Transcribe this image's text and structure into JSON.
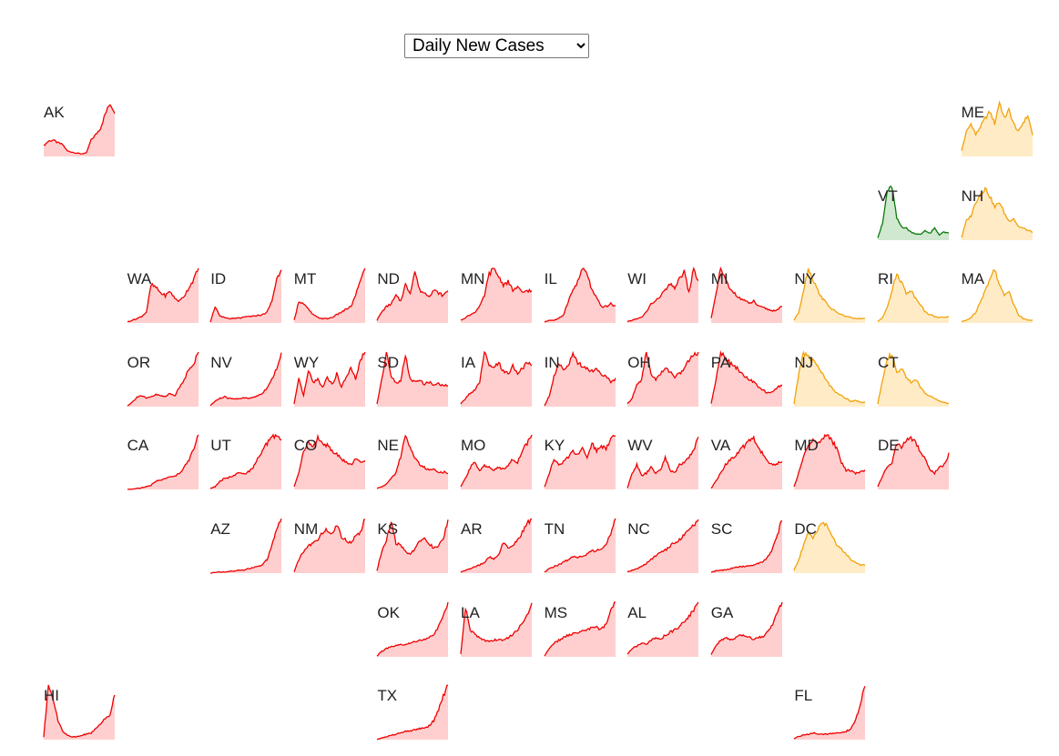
{
  "controls": {
    "metric_options": [
      "Daily New Cases"
    ],
    "metric_selected": "Daily New Cases"
  },
  "colors": {
    "red": {
      "line": "#ee0000",
      "fill": "#ffcfcf"
    },
    "orange": {
      "line": "#f2a20a",
      "fill": "#ffecc6"
    },
    "green": {
      "line": "#0b7a0b",
      "fill": "#cfe8cf"
    }
  },
  "chart_data": {
    "type": "area",
    "note_units": "relative daily new cases per state (0-1 of state max)",
    "states": [
      {
        "abbr": "AK",
        "row": 0,
        "col": 0,
        "color": "red",
        "values": [
          0.2,
          0.28,
          0.3,
          0.25,
          0.22,
          0.1,
          0.08,
          0.06,
          0.05,
          0.06,
          0.3,
          0.4,
          0.52,
          0.78,
          0.97,
          0.82
        ]
      },
      {
        "abbr": "ME",
        "row": 0,
        "col": 11,
        "color": "orange",
        "values": [
          0.1,
          0.45,
          0.6,
          0.4,
          0.55,
          0.7,
          0.82,
          0.6,
          1.0,
          0.7,
          0.85,
          0.6,
          0.45,
          0.62,
          0.75,
          0.4
        ]
      },
      {
        "abbr": "VT",
        "row": 1,
        "col": 10,
        "color": "green",
        "values": [
          0.05,
          0.3,
          0.9,
          0.98,
          0.4,
          0.25,
          0.22,
          0.15,
          0.12,
          0.1,
          0.18,
          0.12,
          0.22,
          0.1,
          0.15,
          0.12
        ]
      },
      {
        "abbr": "NH",
        "row": 1,
        "col": 11,
        "color": "orange",
        "values": [
          0.05,
          0.35,
          0.45,
          0.7,
          0.85,
          0.95,
          0.8,
          0.6,
          0.7,
          0.5,
          0.35,
          0.4,
          0.25,
          0.22,
          0.18,
          0.15
        ]
      },
      {
        "abbr": "WA",
        "row": 2,
        "col": 1,
        "color": "red",
        "values": [
          0.02,
          0.05,
          0.08,
          0.12,
          0.2,
          0.7,
          0.65,
          0.55,
          0.5,
          0.58,
          0.45,
          0.4,
          0.5,
          0.65,
          0.8,
          1.0
        ]
      },
      {
        "abbr": "ID",
        "row": 2,
        "col": 2,
        "color": "red",
        "values": [
          0.02,
          0.3,
          0.12,
          0.1,
          0.08,
          0.08,
          0.09,
          0.1,
          0.12,
          0.12,
          0.14,
          0.15,
          0.2,
          0.4,
          0.8,
          1.0
        ]
      },
      {
        "abbr": "MT",
        "row": 2,
        "col": 3,
        "color": "red",
        "values": [
          0.05,
          0.4,
          0.35,
          0.25,
          0.15,
          0.1,
          0.08,
          0.08,
          0.1,
          0.15,
          0.2,
          0.25,
          0.3,
          0.5,
          0.8,
          1.0
        ]
      },
      {
        "abbr": "ND",
        "row": 2,
        "col": 4,
        "color": "red",
        "values": [
          0.05,
          0.2,
          0.3,
          0.35,
          0.5,
          0.4,
          0.7,
          0.55,
          0.95,
          0.6,
          0.55,
          0.5,
          0.6,
          0.55,
          0.5,
          0.6
        ]
      },
      {
        "abbr": "MN",
        "row": 2,
        "col": 5,
        "color": "red",
        "values": [
          0.05,
          0.1,
          0.15,
          0.2,
          0.3,
          0.5,
          0.9,
          1.0,
          0.85,
          0.7,
          0.75,
          0.6,
          0.65,
          0.55,
          0.6,
          0.58
        ]
      },
      {
        "abbr": "IL",
        "row": 2,
        "col": 6,
        "color": "red",
        "values": [
          0.02,
          0.05,
          0.05,
          0.08,
          0.15,
          0.4,
          0.6,
          0.75,
          1.0,
          0.9,
          0.6,
          0.45,
          0.3,
          0.3,
          0.35,
          0.3
        ]
      },
      {
        "abbr": "WI",
        "row": 2,
        "col": 7,
        "color": "red",
        "values": [
          0.02,
          0.05,
          0.08,
          0.1,
          0.2,
          0.35,
          0.4,
          0.5,
          0.6,
          0.7,
          0.65,
          0.8,
          0.95,
          0.55,
          1.0,
          0.75
        ]
      },
      {
        "abbr": "MI",
        "row": 2,
        "col": 8,
        "color": "red",
        "values": [
          0.1,
          0.5,
          1.0,
          0.8,
          0.6,
          0.55,
          0.45,
          0.42,
          0.35,
          0.4,
          0.3,
          0.28,
          0.25,
          0.22,
          0.25,
          0.3
        ]
      },
      {
        "abbr": "NY",
        "row": 2,
        "col": 9,
        "color": "orange",
        "values": [
          0.05,
          0.2,
          0.6,
          1.0,
          0.8,
          0.6,
          0.45,
          0.35,
          0.25,
          0.2,
          0.15,
          0.12,
          0.1,
          0.08,
          0.08,
          0.08
        ]
      },
      {
        "abbr": "RI",
        "row": 2,
        "col": 10,
        "color": "orange",
        "values": [
          0.02,
          0.1,
          0.3,
          0.6,
          0.9,
          0.75,
          0.55,
          0.6,
          0.45,
          0.35,
          0.2,
          0.15,
          0.12,
          0.1,
          0.1,
          0.12
        ]
      },
      {
        "abbr": "MA",
        "row": 2,
        "col": 11,
        "color": "orange",
        "values": [
          0.02,
          0.05,
          0.1,
          0.2,
          0.4,
          0.6,
          0.8,
          1.0,
          0.7,
          0.5,
          0.6,
          0.35,
          0.15,
          0.08,
          0.06,
          0.05
        ]
      },
      {
        "abbr": "OR",
        "row": 3,
        "col": 1,
        "color": "red",
        "values": [
          0.02,
          0.08,
          0.18,
          0.2,
          0.15,
          0.18,
          0.22,
          0.2,
          0.18,
          0.25,
          0.2,
          0.35,
          0.5,
          0.7,
          0.8,
          1.0
        ]
      },
      {
        "abbr": "NV",
        "row": 3,
        "col": 2,
        "color": "red",
        "values": [
          0.02,
          0.1,
          0.15,
          0.18,
          0.15,
          0.14,
          0.15,
          0.16,
          0.15,
          0.17,
          0.2,
          0.25,
          0.35,
          0.5,
          0.7,
          1.0
        ]
      },
      {
        "abbr": "WY",
        "row": 3,
        "col": 3,
        "color": "red",
        "values": [
          0.05,
          0.5,
          0.2,
          0.65,
          0.45,
          0.5,
          0.35,
          0.55,
          0.4,
          0.6,
          0.35,
          0.55,
          0.7,
          0.5,
          0.85,
          1.0
        ]
      },
      {
        "abbr": "SD",
        "row": 3,
        "col": 4,
        "color": "red",
        "values": [
          0.05,
          0.5,
          1.0,
          0.55,
          0.45,
          0.45,
          0.95,
          0.5,
          0.45,
          0.48,
          0.42,
          0.45,
          0.4,
          0.42,
          0.38,
          0.4
        ]
      },
      {
        "abbr": "IA",
        "row": 3,
        "col": 5,
        "color": "red",
        "values": [
          0.05,
          0.15,
          0.25,
          0.3,
          0.45,
          1.0,
          0.75,
          0.7,
          0.8,
          0.65,
          0.6,
          0.75,
          0.6,
          0.7,
          0.8,
          0.75
        ]
      },
      {
        "abbr": "IN",
        "row": 3,
        "col": 6,
        "color": "red",
        "values": [
          0.02,
          0.2,
          0.55,
          0.8,
          0.7,
          0.75,
          0.95,
          0.8,
          0.75,
          0.7,
          0.65,
          0.7,
          0.6,
          0.55,
          0.45,
          0.5
        ]
      },
      {
        "abbr": "OH",
        "row": 3,
        "col": 7,
        "color": "red",
        "values": [
          0.05,
          0.15,
          0.4,
          0.5,
          1.0,
          0.6,
          0.5,
          0.6,
          0.7,
          0.65,
          0.55,
          0.6,
          0.7,
          0.85,
          0.95,
          1.0
        ]
      },
      {
        "abbr": "PA",
        "row": 3,
        "col": 8,
        "color": "red",
        "values": [
          0.05,
          0.5,
          1.0,
          0.9,
          0.8,
          0.75,
          0.65,
          0.55,
          0.5,
          0.45,
          0.35,
          0.3,
          0.25,
          0.28,
          0.35,
          0.4
        ]
      },
      {
        "abbr": "NJ",
        "row": 3,
        "col": 9,
        "color": "orange",
        "values": [
          0.05,
          0.6,
          1.0,
          0.9,
          0.85,
          0.75,
          0.6,
          0.45,
          0.35,
          0.25,
          0.2,
          0.15,
          0.1,
          0.12,
          0.08,
          0.08
        ]
      },
      {
        "abbr": "CT",
        "row": 3,
        "col": 10,
        "color": "orange",
        "values": [
          0.05,
          0.5,
          0.9,
          0.95,
          0.6,
          0.7,
          0.55,
          0.45,
          0.5,
          0.35,
          0.25,
          0.2,
          0.15,
          0.1,
          0.08,
          0.06
        ]
      },
      {
        "abbr": "CA",
        "row": 4,
        "col": 1,
        "color": "red",
        "values": [
          0.0,
          0.01,
          0.02,
          0.03,
          0.05,
          0.08,
          0.15,
          0.18,
          0.2,
          0.22,
          0.25,
          0.3,
          0.4,
          0.55,
          0.75,
          1.0
        ]
      },
      {
        "abbr": "UT",
        "row": 4,
        "col": 2,
        "color": "red",
        "values": [
          0.02,
          0.05,
          0.15,
          0.2,
          0.22,
          0.25,
          0.3,
          0.28,
          0.32,
          0.4,
          0.55,
          0.7,
          0.85,
          0.95,
          1.0,
          0.9
        ]
      },
      {
        "abbr": "CO",
        "row": 4,
        "col": 3,
        "color": "red",
        "values": [
          0.05,
          0.3,
          0.7,
          0.9,
          0.75,
          0.95,
          0.85,
          0.8,
          0.7,
          0.65,
          0.55,
          0.5,
          0.45,
          0.55,
          0.5,
          0.55
        ]
      },
      {
        "abbr": "NE",
        "row": 4,
        "col": 4,
        "color": "red",
        "values": [
          0.02,
          0.05,
          0.1,
          0.2,
          0.3,
          0.6,
          1.0,
          0.75,
          0.6,
          0.45,
          0.4,
          0.35,
          0.4,
          0.3,
          0.32,
          0.3
        ]
      },
      {
        "abbr": "MO",
        "row": 4,
        "col": 5,
        "color": "red",
        "values": [
          0.05,
          0.2,
          0.4,
          0.5,
          0.35,
          0.45,
          0.4,
          0.35,
          0.4,
          0.38,
          0.45,
          0.55,
          0.5,
          0.7,
          0.85,
          1.0
        ]
      },
      {
        "abbr": "KY",
        "row": 4,
        "col": 6,
        "color": "red",
        "values": [
          0.05,
          0.3,
          0.55,
          0.45,
          0.5,
          0.6,
          0.7,
          0.65,
          0.75,
          0.6,
          0.85,
          0.7,
          0.8,
          0.75,
          0.95,
          1.0
        ]
      },
      {
        "abbr": "WV",
        "row": 4,
        "col": 7,
        "color": "red",
        "values": [
          0.02,
          0.3,
          0.45,
          0.25,
          0.3,
          0.4,
          0.3,
          0.35,
          0.6,
          0.35,
          0.3,
          0.45,
          0.5,
          0.6,
          0.7,
          1.0
        ]
      },
      {
        "abbr": "VA",
        "row": 4,
        "col": 8,
        "color": "red",
        "values": [
          0.02,
          0.15,
          0.3,
          0.45,
          0.55,
          0.6,
          0.7,
          0.8,
          0.9,
          0.95,
          0.75,
          0.65,
          0.5,
          0.45,
          0.48,
          0.5
        ]
      },
      {
        "abbr": "MD",
        "row": 4,
        "col": 9,
        "color": "red",
        "values": [
          0.05,
          0.3,
          0.6,
          0.8,
          0.9,
          0.85,
          0.95,
          1.0,
          0.9,
          0.75,
          0.5,
          0.35,
          0.35,
          0.3,
          0.32,
          0.35
        ]
      },
      {
        "abbr": "DE",
        "row": 4,
        "col": 10,
        "color": "red",
        "values": [
          0.05,
          0.25,
          0.4,
          0.5,
          0.85,
          0.75,
          0.9,
          0.95,
          0.85,
          0.7,
          0.55,
          0.35,
          0.3,
          0.4,
          0.45,
          0.65
        ]
      },
      {
        "abbr": "AZ",
        "row": 5,
        "col": 2,
        "color": "red",
        "values": [
          0.0,
          0.01,
          0.02,
          0.02,
          0.03,
          0.04,
          0.05,
          0.06,
          0.08,
          0.1,
          0.12,
          0.15,
          0.25,
          0.5,
          0.8,
          1.0
        ]
      },
      {
        "abbr": "NM",
        "row": 5,
        "col": 3,
        "color": "red",
        "values": [
          0.02,
          0.25,
          0.4,
          0.5,
          0.55,
          0.6,
          0.75,
          0.8,
          0.7,
          0.9,
          0.65,
          0.6,
          0.55,
          0.7,
          0.75,
          1.0
        ]
      },
      {
        "abbr": "KS",
        "row": 5,
        "col": 4,
        "color": "red",
        "values": [
          0.05,
          0.4,
          0.6,
          0.95,
          0.55,
          0.5,
          0.4,
          0.35,
          0.45,
          0.6,
          0.65,
          0.55,
          0.45,
          0.5,
          0.65,
          0.95
        ]
      },
      {
        "abbr": "AR",
        "row": 5,
        "col": 5,
        "color": "red",
        "values": [
          0.02,
          0.05,
          0.08,
          0.12,
          0.15,
          0.2,
          0.3,
          0.25,
          0.35,
          0.55,
          0.45,
          0.5,
          0.6,
          0.75,
          0.9,
          1.0
        ]
      },
      {
        "abbr": "TN",
        "row": 5,
        "col": 6,
        "color": "red",
        "values": [
          0.02,
          0.08,
          0.12,
          0.15,
          0.2,
          0.25,
          0.3,
          0.28,
          0.32,
          0.35,
          0.4,
          0.42,
          0.45,
          0.55,
          0.7,
          1.0
        ]
      },
      {
        "abbr": "NC",
        "row": 5,
        "col": 7,
        "color": "red",
        "values": [
          0.02,
          0.05,
          0.08,
          0.12,
          0.18,
          0.25,
          0.32,
          0.38,
          0.42,
          0.5,
          0.55,
          0.62,
          0.7,
          0.78,
          0.88,
          1.0
        ]
      },
      {
        "abbr": "SC",
        "row": 5,
        "col": 8,
        "color": "red",
        "values": [
          0.02,
          0.04,
          0.05,
          0.06,
          0.08,
          0.1,
          0.12,
          0.12,
          0.13,
          0.15,
          0.18,
          0.22,
          0.3,
          0.45,
          0.7,
          1.0
        ]
      },
      {
        "abbr": "DC",
        "row": 5,
        "col": 9,
        "color": "orange",
        "values": [
          0.05,
          0.25,
          0.5,
          0.75,
          0.65,
          0.8,
          0.95,
          0.85,
          0.7,
          0.5,
          0.45,
          0.35,
          0.25,
          0.2,
          0.15,
          0.15
        ]
      },
      {
        "abbr": "OK",
        "row": 6,
        "col": 4,
        "color": "red",
        "values": [
          0.02,
          0.1,
          0.15,
          0.18,
          0.2,
          0.22,
          0.22,
          0.25,
          0.28,
          0.3,
          0.32,
          0.35,
          0.4,
          0.55,
          0.75,
          1.0
        ]
      },
      {
        "abbr": "LA",
        "row": 6,
        "col": 5,
        "color": "red",
        "values": [
          0.05,
          0.9,
          0.5,
          0.4,
          0.35,
          0.3,
          0.28,
          0.3,
          0.32,
          0.3,
          0.35,
          0.4,
          0.5,
          0.6,
          0.75,
          0.95
        ]
      },
      {
        "abbr": "MS",
        "row": 6,
        "col": 6,
        "color": "red",
        "values": [
          0.02,
          0.15,
          0.25,
          0.3,
          0.35,
          0.4,
          0.42,
          0.45,
          0.48,
          0.5,
          0.52,
          0.55,
          0.5,
          0.6,
          0.85,
          1.0
        ]
      },
      {
        "abbr": "AL",
        "row": 6,
        "col": 7,
        "color": "red",
        "values": [
          0.05,
          0.15,
          0.2,
          0.25,
          0.22,
          0.3,
          0.35,
          0.32,
          0.4,
          0.45,
          0.5,
          0.55,
          0.65,
          0.75,
          0.85,
          1.0
        ]
      },
      {
        "abbr": "GA",
        "row": 6,
        "col": 8,
        "color": "red",
        "values": [
          0.05,
          0.2,
          0.3,
          0.35,
          0.3,
          0.35,
          0.4,
          0.38,
          0.35,
          0.33,
          0.35,
          0.38,
          0.45,
          0.6,
          0.8,
          1.0
        ]
      },
      {
        "abbr": "HI",
        "row": 7,
        "col": 0,
        "color": "red",
        "values": [
          0.05,
          1.0,
          0.75,
          0.35,
          0.15,
          0.08,
          0.05,
          0.05,
          0.08,
          0.1,
          0.12,
          0.2,
          0.3,
          0.4,
          0.45,
          0.85
        ]
      },
      {
        "abbr": "TX",
        "row": 7,
        "col": 4,
        "color": "red",
        "values": [
          0.0,
          0.03,
          0.05,
          0.08,
          0.1,
          0.12,
          0.15,
          0.16,
          0.18,
          0.2,
          0.22,
          0.25,
          0.35,
          0.55,
          0.8,
          1.0
        ]
      },
      {
        "abbr": "FL",
        "row": 7,
        "col": 9,
        "color": "red",
        "values": [
          0.02,
          0.06,
          0.08,
          0.1,
          0.12,
          0.11,
          0.1,
          0.1,
          0.11,
          0.12,
          0.13,
          0.15,
          0.2,
          0.35,
          0.65,
          1.0
        ]
      }
    ]
  }
}
